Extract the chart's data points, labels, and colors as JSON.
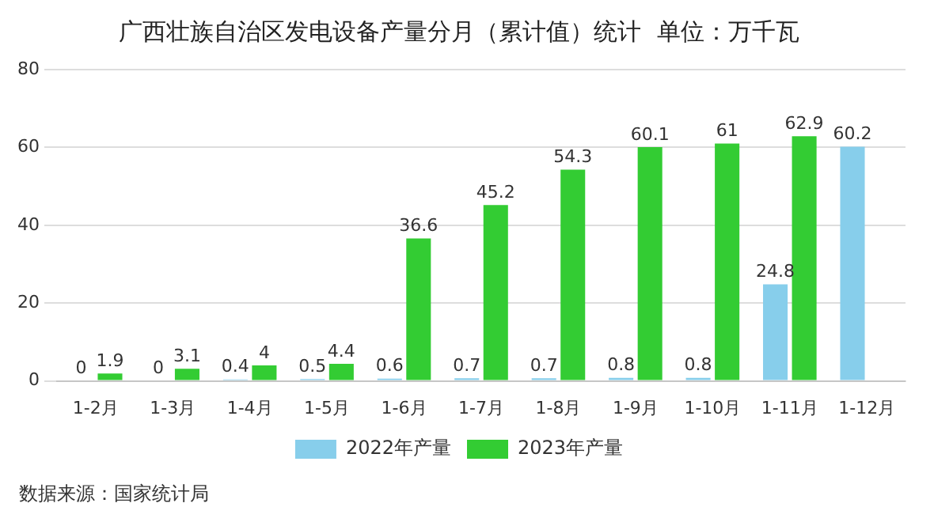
{
  "chart_data": {
    "type": "bar",
    "title": "广西壮族自治区发电设备产量分月（累计值）统计  单位：万千瓦",
    "categories": [
      "1-2月",
      "1-3月",
      "1-4月",
      "1-5月",
      "1-6月",
      "1-7月",
      "1-8月",
      "1-9月",
      "1-10月",
      "1-11月",
      "1-12月"
    ],
    "series": [
      {
        "name": "2022年产量",
        "color": "#87ceeb",
        "values": [
          0,
          0,
          0.4,
          0.5,
          0.6,
          0.7,
          0.7,
          0.8,
          0.8,
          24.8,
          60.2
        ]
      },
      {
        "name": "2023年产量",
        "color": "#33cc33",
        "values": [
          1.9,
          3.1,
          4,
          4.4,
          36.6,
          45.2,
          54.3,
          60.1,
          61,
          62.9,
          null
        ]
      }
    ],
    "ylim": [
      0,
      80
    ],
    "yticks": [
      0,
      20,
      40,
      60,
      80
    ],
    "grid": "y",
    "legend": "bottom",
    "data_labels": true,
    "annotations": [
      "数据来源：国家统计局"
    ]
  }
}
